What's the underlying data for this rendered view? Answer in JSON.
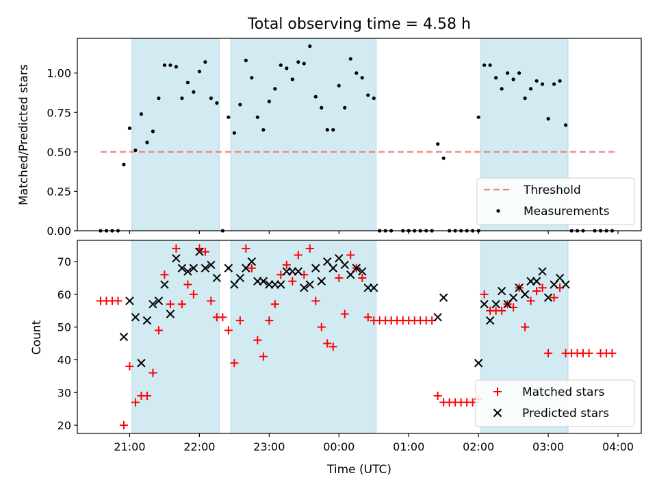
{
  "chart_data": [
    {
      "type": "scatter",
      "title": "Total observing time = 4.58 h",
      "xlabel": "",
      "ylabel": "Matched/Predicted stars",
      "xlim": [
        "20:15",
        "04:20"
      ],
      "ylim": [
        0,
        1.22
      ],
      "x_ticks": [
        "21:00",
        "22:00",
        "23:00",
        "00:00",
        "01:00",
        "02:00",
        "03:00",
        "04:00"
      ],
      "y_ticks": [
        "0.00",
        "0.25",
        "0.50",
        "0.75",
        "1.00"
      ],
      "shaded_intervals": [
        [
          "21:02",
          "22:17"
        ],
        [
          "22:27",
          "00:32"
        ],
        [
          "02:02",
          "03:17"
        ]
      ],
      "shade_color": "#add8e6",
      "threshold": {
        "name": "Threshold",
        "value": 0.5,
        "x_start": "20:35",
        "x_end": "03:59",
        "color": "#f08080"
      },
      "series": [
        {
          "name": "Measurements",
          "color": "#000000",
          "points": [
            [
              "20:35",
              0
            ],
            [
              "20:40",
              0
            ],
            [
              "20:45",
              0
            ],
            [
              "20:50",
              0
            ],
            [
              "20:55",
              0.42
            ],
            [
              "21:00",
              0.65
            ],
            [
              "21:05",
              0.51
            ],
            [
              "21:10",
              0.74
            ],
            [
              "21:15",
              0.56
            ],
            [
              "21:20",
              0.63
            ],
            [
              "21:25",
              0.84
            ],
            [
              "21:30",
              1.05
            ],
            [
              "21:35",
              1.05
            ],
            [
              "21:40",
              1.04
            ],
            [
              "21:45",
              0.84
            ],
            [
              "21:50",
              0.94
            ],
            [
              "21:55",
              0.88
            ],
            [
              "22:00",
              1.01
            ],
            [
              "22:05",
              1.07
            ],
            [
              "22:10",
              0.84
            ],
            [
              "22:15",
              0.81
            ],
            [
              "22:20",
              0
            ],
            [
              "22:25",
              0.72
            ],
            [
              "22:30",
              0.62
            ],
            [
              "22:35",
              0.8
            ],
            [
              "22:40",
              1.08
            ],
            [
              "22:45",
              0.97
            ],
            [
              "22:50",
              0.72
            ],
            [
              "22:55",
              0.64
            ],
            [
              "23:00",
              0.82
            ],
            [
              "23:05",
              0.9
            ],
            [
              "23:10",
              1.05
            ],
            [
              "23:15",
              1.03
            ],
            [
              "23:20",
              0.96
            ],
            [
              "23:25",
              1.07
            ],
            [
              "23:30",
              1.06
            ],
            [
              "23:35",
              1.17
            ],
            [
              "23:40",
              0.85
            ],
            [
              "23:45",
              0.78
            ],
            [
              "23:50",
              0.64
            ],
            [
              "23:55",
              0.64
            ],
            [
              "00:00",
              0.92
            ],
            [
              "00:05",
              0.78
            ],
            [
              "00:10",
              1.09
            ],
            [
              "00:15",
              1.0
            ],
            [
              "00:20",
              0.97
            ],
            [
              "00:25",
              0.86
            ],
            [
              "00:30",
              0.84
            ],
            [
              "00:35",
              0
            ],
            [
              "00:40",
              0
            ],
            [
              "00:45",
              0
            ],
            [
              "00:55",
              0
            ],
            [
              "01:00",
              0
            ],
            [
              "01:05",
              0
            ],
            [
              "01:10",
              0
            ],
            [
              "01:15",
              0
            ],
            [
              "01:20",
              0
            ],
            [
              "01:25",
              0.55
            ],
            [
              "01:30",
              0.46
            ],
            [
              "01:35",
              0
            ],
            [
              "01:40",
              0
            ],
            [
              "01:45",
              0
            ],
            [
              "01:50",
              0
            ],
            [
              "01:55",
              0
            ],
            [
              "02:00",
              0
            ],
            [
              "02:00",
              0.72
            ],
            [
              "02:05",
              1.05
            ],
            [
              "02:10",
              1.05
            ],
            [
              "02:15",
              0.97
            ],
            [
              "02:20",
              0.9
            ],
            [
              "02:25",
              1.0
            ],
            [
              "02:30",
              0.96
            ],
            [
              "02:35",
              1.0
            ],
            [
              "02:40",
              0.84
            ],
            [
              "02:45",
              0.9
            ],
            [
              "02:50",
              0.95
            ],
            [
              "02:55",
              0.93
            ],
            [
              "03:00",
              0.71
            ],
            [
              "03:05",
              0.93
            ],
            [
              "03:10",
              0.95
            ],
            [
              "03:15",
              0.67
            ],
            [
              "03:20",
              0
            ],
            [
              "03:25",
              0
            ],
            [
              "03:30",
              0
            ],
            [
              "03:40",
              0
            ],
            [
              "03:45",
              0
            ],
            [
              "03:50",
              0
            ],
            [
              "03:55",
              0
            ]
          ]
        }
      ]
    },
    {
      "type": "scatter",
      "title": "",
      "xlabel": "Time (UTC)",
      "ylabel": "Count",
      "xlim": [
        "20:15",
        "04:20"
      ],
      "ylim": [
        17.5,
        76.5
      ],
      "x_ticks": [
        "21:00",
        "22:00",
        "23:00",
        "00:00",
        "01:00",
        "02:00",
        "03:00",
        "04:00"
      ],
      "y_ticks": [
        "20",
        "30",
        "40",
        "50",
        "60",
        "70"
      ],
      "shaded_intervals": [
        [
          "21:02",
          "22:17"
        ],
        [
          "22:27",
          "00:32"
        ],
        [
          "02:02",
          "03:17"
        ]
      ],
      "shade_color": "#add8e6",
      "series": [
        {
          "name": "Matched stars",
          "marker": "plus",
          "color": "#ff0000",
          "points": [
            [
              "20:35",
              58
            ],
            [
              "20:40",
              58
            ],
            [
              "20:45",
              58
            ],
            [
              "20:50",
              58
            ],
            [
              "20:55",
              20
            ],
            [
              "21:00",
              38
            ],
            [
              "21:05",
              27
            ],
            [
              "21:10",
              29
            ],
            [
              "21:15",
              29
            ],
            [
              "21:20",
              36
            ],
            [
              "21:25",
              49
            ],
            [
              "21:30",
              66
            ],
            [
              "21:35",
              57
            ],
            [
              "21:40",
              74
            ],
            [
              "21:45",
              57
            ],
            [
              "21:50",
              63
            ],
            [
              "21:55",
              60
            ],
            [
              "22:00",
              74
            ],
            [
              "22:05",
              73
            ],
            [
              "22:10",
              58
            ],
            [
              "22:15",
              53
            ],
            [
              "22:20",
              53
            ],
            [
              "22:25",
              49
            ],
            [
              "22:30",
              39
            ],
            [
              "22:35",
              52
            ],
            [
              "22:40",
              74
            ],
            [
              "22:45",
              68
            ],
            [
              "22:50",
              46
            ],
            [
              "22:55",
              41
            ],
            [
              "23:00",
              52
            ],
            [
              "23:05",
              57
            ],
            [
              "23:10",
              66
            ],
            [
              "23:15",
              69
            ],
            [
              "23:20",
              64
            ],
            [
              "23:25",
              72
            ],
            [
              "23:30",
              66
            ],
            [
              "23:35",
              74
            ],
            [
              "23:40",
              58
            ],
            [
              "23:45",
              50
            ],
            [
              "23:50",
              45
            ],
            [
              "23:55",
              44
            ],
            [
              "00:00",
              65
            ],
            [
              "00:05",
              54
            ],
            [
              "00:10",
              72
            ],
            [
              "00:15",
              68
            ],
            [
              "00:20",
              65
            ],
            [
              "00:25",
              53
            ],
            [
              "00:30",
              52
            ],
            [
              "00:35",
              52
            ],
            [
              "00:40",
              52
            ],
            [
              "00:45",
              52
            ],
            [
              "00:50",
              52
            ],
            [
              "00:55",
              52
            ],
            [
              "01:00",
              52
            ],
            [
              "01:05",
              52
            ],
            [
              "01:10",
              52
            ],
            [
              "01:15",
              52
            ],
            [
              "01:20",
              52
            ],
            [
              "01:25",
              29
            ],
            [
              "01:30",
              27
            ],
            [
              "01:35",
              27
            ],
            [
              "01:40",
              27
            ],
            [
              "01:45",
              27
            ],
            [
              "01:50",
              27
            ],
            [
              "01:55",
              27
            ],
            [
              "02:00",
              28
            ],
            [
              "02:05",
              60
            ],
            [
              "02:10",
              55
            ],
            [
              "02:15",
              55
            ],
            [
              "02:20",
              55
            ],
            [
              "02:25",
              57
            ],
            [
              "02:30",
              56
            ],
            [
              "02:35",
              62
            ],
            [
              "02:40",
              50
            ],
            [
              "02:45",
              58
            ],
            [
              "02:50",
              61
            ],
            [
              "02:55",
              62
            ],
            [
              "03:00",
              42
            ],
            [
              "03:05",
              59
            ],
            [
              "03:10",
              62
            ],
            [
              "03:15",
              42
            ],
            [
              "03:20",
              42
            ],
            [
              "03:25",
              42
            ],
            [
              "03:30",
              42
            ],
            [
              "03:35",
              42
            ],
            [
              "03:45",
              42
            ],
            [
              "03:50",
              42
            ],
            [
              "03:55",
              42
            ]
          ]
        },
        {
          "name": "Predicted stars",
          "marker": "x",
          "color": "#000000",
          "points": [
            [
              "20:55",
              47
            ],
            [
              "21:00",
              58
            ],
            [
              "21:05",
              53
            ],
            [
              "21:10",
              39
            ],
            [
              "21:15",
              52
            ],
            [
              "21:20",
              57
            ],
            [
              "21:25",
              58
            ],
            [
              "21:30",
              63
            ],
            [
              "21:35",
              54
            ],
            [
              "21:40",
              71
            ],
            [
              "21:45",
              68
            ],
            [
              "21:50",
              67
            ],
            [
              "21:55",
              68
            ],
            [
              "22:00",
              73
            ],
            [
              "22:05",
              68
            ],
            [
              "22:10",
              69
            ],
            [
              "22:15",
              65
            ],
            [
              "22:25",
              68
            ],
            [
              "22:30",
              63
            ],
            [
              "22:35",
              65
            ],
            [
              "22:40",
              68
            ],
            [
              "22:45",
              70
            ],
            [
              "22:50",
              64
            ],
            [
              "22:55",
              64
            ],
            [
              "23:00",
              63
            ],
            [
              "23:05",
              63
            ],
            [
              "23:10",
              63
            ],
            [
              "23:15",
              67
            ],
            [
              "23:20",
              67
            ],
            [
              "23:25",
              67
            ],
            [
              "23:30",
              62
            ],
            [
              "23:35",
              63
            ],
            [
              "23:40",
              68
            ],
            [
              "23:45",
              64
            ],
            [
              "23:50",
              70
            ],
            [
              "23:55",
              68
            ],
            [
              "00:00",
              71
            ],
            [
              "00:05",
              69
            ],
            [
              "00:10",
              66
            ],
            [
              "00:15",
              68
            ],
            [
              "00:20",
              67
            ],
            [
              "00:25",
              62
            ],
            [
              "00:30",
              62
            ],
            [
              "01:25",
              53
            ],
            [
              "01:30",
              59
            ],
            [
              "02:00",
              39
            ],
            [
              "02:05",
              57
            ],
            [
              "02:10",
              52
            ],
            [
              "02:15",
              57
            ],
            [
              "02:20",
              61
            ],
            [
              "02:25",
              57
            ],
            [
              "02:30",
              59
            ],
            [
              "02:35",
              62
            ],
            [
              "02:40",
              60
            ],
            [
              "02:45",
              64
            ],
            [
              "02:50",
              64
            ],
            [
              "02:55",
              67
            ],
            [
              "03:00",
              59
            ],
            [
              "03:05",
              63
            ],
            [
              "03:10",
              65
            ],
            [
              "03:15",
              63
            ]
          ]
        }
      ]
    }
  ]
}
